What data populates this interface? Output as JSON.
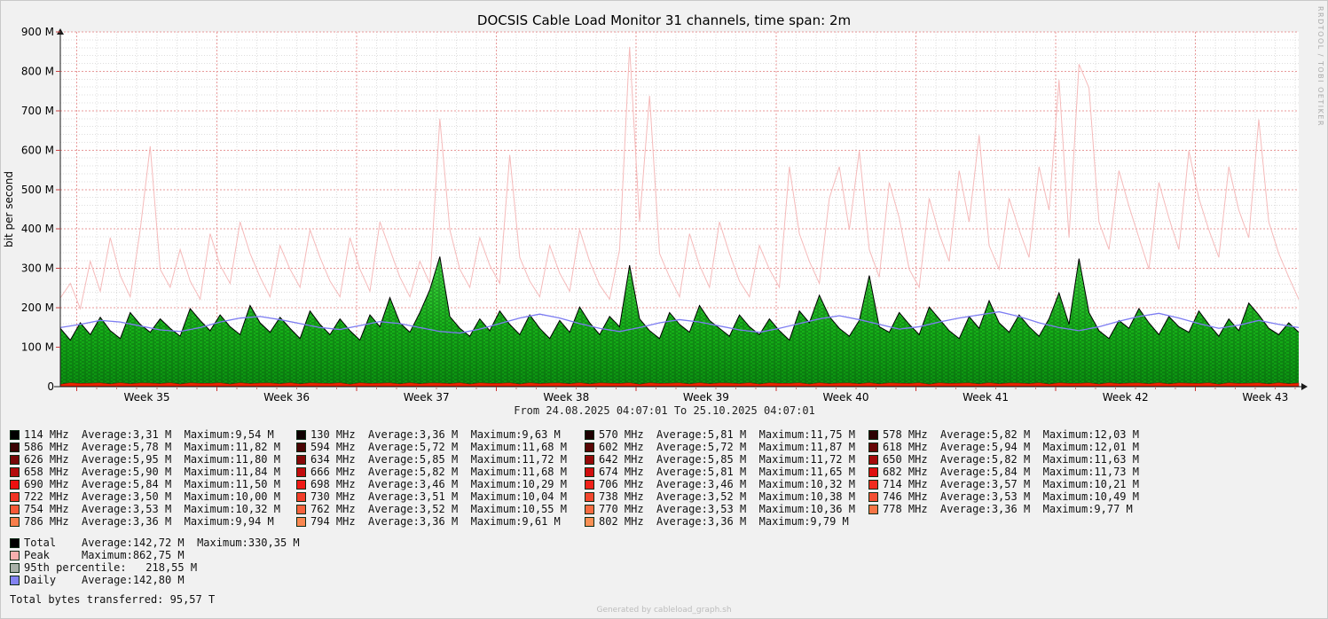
{
  "title": "DOCSIS Cable Load Monitor 31 channels, time span: 2m",
  "watermark": "RRDTOOL / TOBI OETIKER",
  "footer": "Generated by cableload_graph.sh",
  "colors": {
    "bg": "#f1f1f1",
    "plot_bg": "#ffffff",
    "grid_minor": "#dedede",
    "grid_major": "#e89a9a",
    "axis": "#1a1a1a",
    "peak": "#f4b6b6",
    "daily": "#7d7df2",
    "total_outline": "#000000",
    "area_top": "#44d944",
    "area_mid": "#16b219",
    "area_bottom": "#0b8f10",
    "band": "#ee2200",
    "watermark_color": "#ababab"
  },
  "axis": {
    "y_label": "bit per second",
    "y_ticks": [
      "900 M",
      "800 M",
      "700 M",
      "600 M",
      "500 M",
      "400 M",
      "300 M",
      "200 M",
      "100 M",
      "0"
    ],
    "x_ticks": [
      "Week 35",
      "Week 36",
      "Week 37",
      "Week 38",
      "Week 39",
      "Week 40",
      "Week 41",
      "Week 42",
      "Week 43"
    ],
    "subtitle": "From 24.08.2025 04:07:01 To 25.10.2025 04:07:01"
  },
  "legend": {
    "channels": [
      {
        "freq": "114",
        "avg": "3,31",
        "max": "9,54",
        "color": "#000000"
      },
      {
        "freq": "130",
        "avg": "3,36",
        "max": "9,63",
        "color": "#0f0101"
      },
      {
        "freq": "570",
        "avg": "5,81",
        "max": "11,75",
        "color": "#1e0202"
      },
      {
        "freq": "578",
        "avg": "5,82",
        "max": "12,03",
        "color": "#2d0303"
      },
      {
        "freq": "586",
        "avg": "5,78",
        "max": "11,82",
        "color": "#3c0404"
      },
      {
        "freq": "594",
        "avg": "5,72",
        "max": "11,68",
        "color": "#4a0505"
      },
      {
        "freq": "602",
        "avg": "5,72",
        "max": "11,87",
        "color": "#590606"
      },
      {
        "freq": "618",
        "avg": "5,94",
        "max": "12,01",
        "color": "#680707"
      },
      {
        "freq": "626",
        "avg": "5,95",
        "max": "11,80",
        "color": "#770808"
      },
      {
        "freq": "634",
        "avg": "5,85",
        "max": "11,72",
        "color": "#860909"
      },
      {
        "freq": "642",
        "avg": "5,85",
        "max": "11,72",
        "color": "#950a0a"
      },
      {
        "freq": "650",
        "avg": "5,82",
        "max": "11,63",
        "color": "#a40b0b"
      },
      {
        "freq": "658",
        "avg": "5,90",
        "max": "11,84",
        "color": "#b30c0c"
      },
      {
        "freq": "666",
        "avg": "5,82",
        "max": "11,68",
        "color": "#c10d0d"
      },
      {
        "freq": "674",
        "avg": "5,81",
        "max": "11,65",
        "color": "#d00e0e"
      },
      {
        "freq": "682",
        "avg": "5,84",
        "max": "11,73",
        "color": "#df0f0f"
      },
      {
        "freq": "690",
        "avg": "5,84",
        "max": "11,50",
        "color": "#ee1010"
      },
      {
        "freq": "698",
        "avg": "3,46",
        "max": "10,29",
        "color": "#ef1915"
      },
      {
        "freq": "706",
        "avg": "3,46",
        "max": "10,32",
        "color": "#f0221a"
      },
      {
        "freq": "714",
        "avg": "3,57",
        "max": "10,21",
        "color": "#f12b1f"
      },
      {
        "freq": "722",
        "avg": "3,50",
        "max": "10,00",
        "color": "#f13524"
      },
      {
        "freq": "730",
        "avg": "3,51",
        "max": "10,04",
        "color": "#f23e29"
      },
      {
        "freq": "738",
        "avg": "3,52",
        "max": "10,38",
        "color": "#f3472e"
      },
      {
        "freq": "746",
        "avg": "3,53",
        "max": "10,49",
        "color": "#f45033"
      },
      {
        "freq": "754",
        "avg": "3,53",
        "max": "10,32",
        "color": "#f55937"
      },
      {
        "freq": "762",
        "avg": "3,52",
        "max": "10,55",
        "color": "#f6623c"
      },
      {
        "freq": "770",
        "avg": "3,53",
        "max": "10,36",
        "color": "#f76b41"
      },
      {
        "freq": "778",
        "avg": "3,36",
        "max": "9,77",
        "color": "#f77546"
      },
      {
        "freq": "786",
        "avg": "3,36",
        "max": "9,94",
        "color": "#f87e4b"
      },
      {
        "freq": "794",
        "avg": "3,36",
        "max": "9,61",
        "color": "#f98750"
      },
      {
        "freq": "802",
        "avg": "3,36",
        "max": "9,79",
        "color": "#fa9055"
      }
    ],
    "summary": [
      {
        "text": "Total    Average:142,72 M  Maximum:330,35 M",
        "color": "#000000"
      },
      {
        "text": "Peak     Maximum:862,75 M",
        "color": "#f6b0ae"
      },
      {
        "text": "95th percentile:   218,55 M",
        "color": "#a9b1a9"
      },
      {
        "text": "Daily    Average:142,80 M",
        "color": "#8383f2"
      }
    ],
    "total_bytes": "Total bytes transferred: 95,57 T"
  },
  "chart_data": {
    "type": "area",
    "title": "DOCSIS Cable Load Monitor 31 channels, time span: 2m",
    "ylabel": "bit per second",
    "unit": "Mbit/s",
    "ylim_mbit": [
      0,
      900
    ],
    "grid": "on",
    "legend_position": "bottom",
    "x_range": [
      "24.08.2025 04:07:01",
      "25.10.2025 04:07:01"
    ],
    "x_categories": [
      "Week 35",
      "Week 36",
      "Week 37",
      "Week 38",
      "Week 39",
      "Week 40",
      "Week 41",
      "Week 42",
      "Week 43"
    ],
    "stats": {
      "total_avg_mbit": 142.72,
      "total_max_mbit": 330.35,
      "peak_max_mbit": 862.75,
      "percentile95_mbit": 218.55,
      "daily_avg_mbit": 142.8,
      "total_bytes_transferred": "95,57 T"
    },
    "series": [
      {
        "name": "Peak",
        "type": "line",
        "color": "#f4b6b6",
        "max_mbit": 862.75,
        "values_mbit": [
          225,
          262,
          198,
          318,
          242,
          378,
          282,
          228,
          398,
          610,
          298,
          252,
          348,
          268,
          222,
          388,
          308,
          262,
          418,
          338,
          278,
          228,
          358,
          298,
          252,
          398,
          328,
          268,
          228,
          378,
          298,
          242,
          418,
          348,
          278,
          228,
          318,
          262,
          680,
          398,
          298,
          252,
          378,
          308,
          262,
          588,
          328,
          268,
          228,
          358,
          288,
          242,
          398,
          318,
          258,
          222,
          348,
          862,
          418,
          738,
          338,
          278,
          228,
          388,
          308,
          252,
          418,
          338,
          268,
          228,
          358,
          298,
          252,
          558,
          388,
          318,
          262,
          478,
          558,
          398,
          598,
          348,
          278,
          518,
          428,
          298,
          252,
          478,
          388,
          318,
          548,
          418,
          638,
          358,
          298,
          478,
          398,
          328,
          558,
          448,
          778,
          378,
          818,
          758,
          418,
          348,
          548,
          458,
          378,
          298,
          518,
          428,
          348,
          598,
          478,
          398,
          328,
          558,
          448,
          378,
          678,
          418,
          338,
          278,
          222
        ]
      },
      {
        "name": "Total (31 channels stacked)",
        "type": "area",
        "color": "#16b219",
        "outline": "#000000",
        "avg_mbit": 142.72,
        "max_mbit": 330.35,
        "values_mbit": [
          148,
          118,
          162,
          132,
          176,
          142,
          122,
          188,
          158,
          138,
          172,
          148,
          128,
          198,
          168,
          142,
          182,
          152,
          132,
          206,
          162,
          138,
          176,
          148,
          122,
          192,
          158,
          132,
          172,
          142,
          118,
          182,
          152,
          226,
          162,
          138,
          188,
          246,
          330,
          178,
          148,
          128,
          172,
          142,
          192,
          158,
          132,
          182,
          148,
          122,
          168,
          138,
          202,
          162,
          132,
          178,
          152,
          308,
          172,
          142,
          122,
          188,
          158,
          138,
          206,
          168,
          148,
          128,
          182,
          152,
          132,
          172,
          142,
          118,
          192,
          162,
          232,
          178,
          148,
          128,
          168,
          282,
          152,
          138,
          188,
          158,
          132,
          202,
          172,
          142,
          122,
          178,
          148,
          218,
          162,
          138,
          182,
          152,
          128,
          172,
          238,
          158,
          325,
          188,
          142,
          122,
          168,
          148,
          198,
          162,
          132,
          178,
          152,
          138,
          192,
          158,
          128,
          172,
          142,
          212,
          182,
          148,
          132,
          162,
          138
        ]
      },
      {
        "name": "Daily",
        "type": "line",
        "color": "#7d7df2",
        "avg_mbit": 142.8,
        "values_mbit": [
          150,
          158,
          168,
          164,
          154,
          144,
          140,
          150,
          164,
          174,
          178,
          170,
          160,
          150,
          145,
          155,
          165,
          160,
          150,
          140,
          136,
          146,
          160,
          174,
          184,
          174,
          160,
          148,
          140,
          150,
          162,
          170,
          164,
          154,
          144,
          138,
          148,
          160,
          172,
          180,
          170,
          158,
          146,
          152,
          164,
          174,
          182,
          190,
          178,
          162,
          150,
          142,
          152,
          166,
          178,
          186,
          174,
          160,
          148,
          156,
          168,
          158,
          150
        ]
      },
      {
        "name": "95th percentile",
        "type": "constant",
        "value_mbit": 218.55,
        "color": "#a9b1a9"
      }
    ],
    "channels": [
      {
        "freq_mhz": 114,
        "avg_mbit": 3.31,
        "max_mbit": 9.54
      },
      {
        "freq_mhz": 130,
        "avg_mbit": 3.36,
        "max_mbit": 9.63
      },
      {
        "freq_mhz": 570,
        "avg_mbit": 5.81,
        "max_mbit": 11.75
      },
      {
        "freq_mhz": 578,
        "avg_mbit": 5.82,
        "max_mbit": 12.03
      },
      {
        "freq_mhz": 586,
        "avg_mbit": 5.78,
        "max_mbit": 11.82
      },
      {
        "freq_mhz": 594,
        "avg_mbit": 5.72,
        "max_mbit": 11.68
      },
      {
        "freq_mhz": 602,
        "avg_mbit": 5.72,
        "max_mbit": 11.87
      },
      {
        "freq_mhz": 618,
        "avg_mbit": 5.94,
        "max_mbit": 12.01
      },
      {
        "freq_mhz": 626,
        "avg_mbit": 5.95,
        "max_mbit": 11.8
      },
      {
        "freq_mhz": 634,
        "avg_mbit": 5.85,
        "max_mbit": 11.72
      },
      {
        "freq_mhz": 642,
        "avg_mbit": 5.85,
        "max_mbit": 11.72
      },
      {
        "freq_mhz": 650,
        "avg_mbit": 5.82,
        "max_mbit": 11.63
      },
      {
        "freq_mhz": 658,
        "avg_mbit": 5.9,
        "max_mbit": 11.84
      },
      {
        "freq_mhz": 666,
        "avg_mbit": 5.82,
        "max_mbit": 11.68
      },
      {
        "freq_mhz": 674,
        "avg_mbit": 5.81,
        "max_mbit": 11.65
      },
      {
        "freq_mhz": 682,
        "avg_mbit": 5.84,
        "max_mbit": 11.73
      },
      {
        "freq_mhz": 690,
        "avg_mbit": 5.84,
        "max_mbit": 11.5
      },
      {
        "freq_mhz": 698,
        "avg_mbit": 3.46,
        "max_mbit": 10.29
      },
      {
        "freq_mhz": 706,
        "avg_mbit": 3.46,
        "max_mbit": 10.32
      },
      {
        "freq_mhz": 714,
        "avg_mbit": 3.57,
        "max_mbit": 10.21
      },
      {
        "freq_mhz": 722,
        "avg_mbit": 3.5,
        "max_mbit": 10.0
      },
      {
        "freq_mhz": 730,
        "avg_mbit": 3.51,
        "max_mbit": 10.04
      },
      {
        "freq_mhz": 738,
        "avg_mbit": 3.52,
        "max_mbit": 10.38
      },
      {
        "freq_mhz": 746,
        "avg_mbit": 3.53,
        "max_mbit": 10.49
      },
      {
        "freq_mhz": 754,
        "avg_mbit": 3.53,
        "max_mbit": 10.32
      },
      {
        "freq_mhz": 762,
        "avg_mbit": 3.52,
        "max_mbit": 10.55
      },
      {
        "freq_mhz": 770,
        "avg_mbit": 3.53,
        "max_mbit": 10.36
      },
      {
        "freq_mhz": 778,
        "avg_mbit": 3.36,
        "max_mbit": 9.77
      },
      {
        "freq_mhz": 786,
        "avg_mbit": 3.36,
        "max_mbit": 9.94
      },
      {
        "freq_mhz": 794,
        "avg_mbit": 3.36,
        "max_mbit": 9.61
      },
      {
        "freq_mhz": 802,
        "avg_mbit": 3.36,
        "max_mbit": 9.79
      }
    ]
  }
}
